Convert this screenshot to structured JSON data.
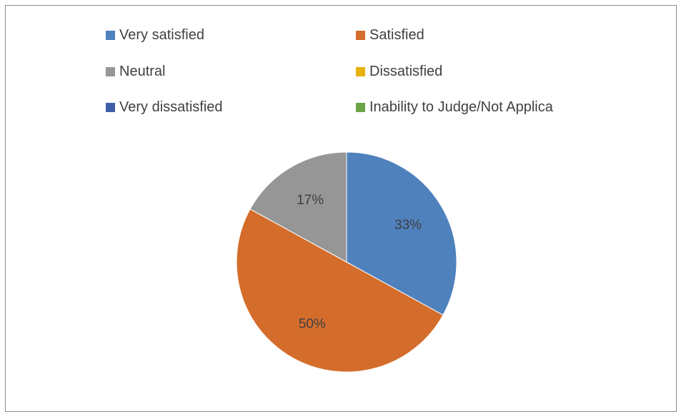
{
  "chart_data": {
    "type": "pie",
    "title": "",
    "categories": [
      "Very satisfied",
      "Satisfied",
      "Neutral",
      "Dissatisfied",
      "Very dissatisfied",
      "Inability to Judge/Not Applica"
    ],
    "values": [
      33,
      50,
      17,
      0,
      0,
      0
    ],
    "data_labels": [
      "33%",
      "50%",
      "17%",
      "",
      "",
      ""
    ],
    "colors": [
      "#4f81bd",
      "#d46d2b",
      "#969696",
      "#e8b10b",
      "#3f5ea8",
      "#6aa444"
    ],
    "start_angle_deg": 0,
    "direction": "clockwise",
    "legend_position": "top"
  }
}
